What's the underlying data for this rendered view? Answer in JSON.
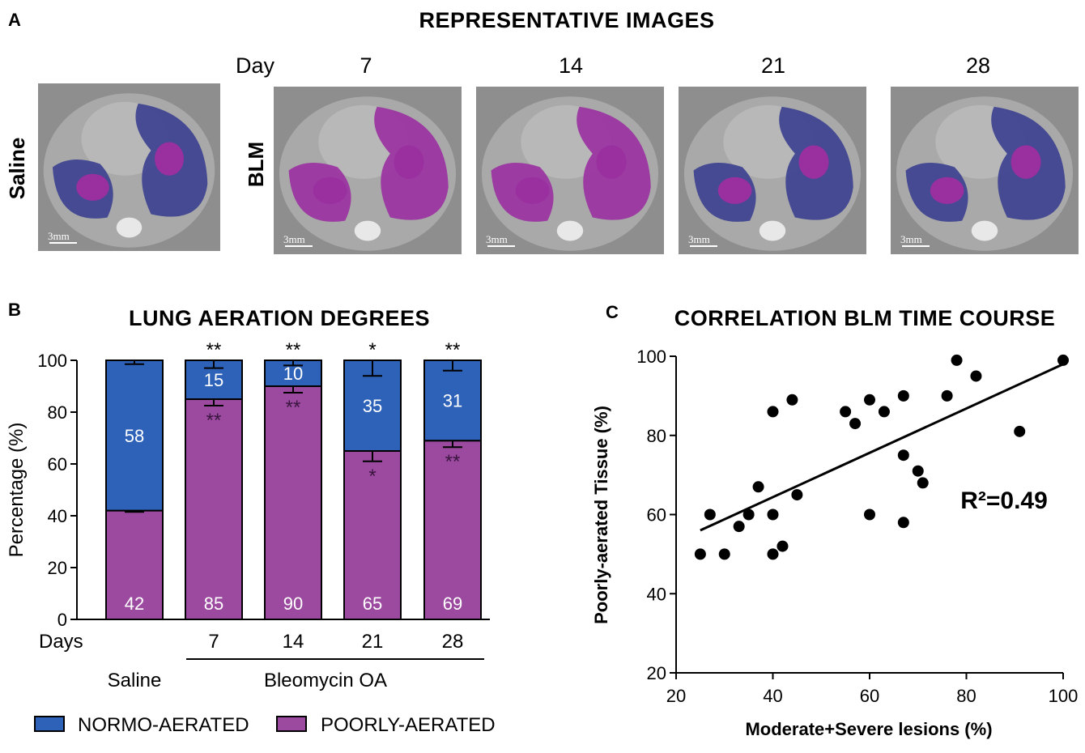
{
  "panel_a": {
    "letter": "A",
    "title": "REPRESENTATIVE  IMAGES",
    "day_label": "Day",
    "saline_label": "Saline",
    "blm_label": "BLM",
    "scale_bar": "3mm",
    "days": [
      "7",
      "14",
      "21",
      "28"
    ]
  },
  "chart_data": [
    {
      "type": "bar",
      "panel": "B",
      "title": "LUNG AERATION  DEGREES",
      "ylabel": "Percentage (%)",
      "ylim": [
        0,
        100
      ],
      "yticks": [
        "0",
        "20",
        "40",
        "60",
        "80",
        "100"
      ],
      "xlabel_prefix": "Days",
      "categories": [
        "",
        "7",
        "14",
        "21",
        "28"
      ],
      "group_labels": {
        "saline": "Saline",
        "bleomycin": "Bleomycin OA"
      },
      "series": [
        {
          "name": "POORLY-AERATED",
          "color": "#9b4a9f",
          "values": [
            42,
            85,
            90,
            65,
            69
          ],
          "labels": [
            "42",
            "85",
            "90",
            "65",
            "69"
          ],
          "err": [
            0.5,
            2.5,
            2.5,
            4,
            2.5
          ],
          "significance": [
            "",
            "**",
            "**",
            "*",
            "**"
          ]
        },
        {
          "name": "NORMO-AERATED",
          "color": "#2e62b8",
          "values": [
            58,
            15,
            10,
            35,
            31
          ],
          "labels": [
            "58",
            "15",
            "10",
            "35",
            "31"
          ],
          "err": [
            1.5,
            3,
            2,
            6,
            4
          ],
          "significance": [
            "",
            "**",
            "**",
            "*",
            "**"
          ]
        }
      ],
      "legend": [
        "NORMO-AERATED",
        "POORLY-AERATED"
      ]
    },
    {
      "type": "scatter",
      "panel": "C",
      "title": "CORRELATION  BLM TIME COURSE",
      "xlabel": "Moderate+Severe lesions (%)",
      "ylabel": "Poorly-aerated Tissue (%)",
      "xlim": [
        20,
        100
      ],
      "ylim": [
        20,
        100
      ],
      "xticks": [
        "20",
        "40",
        "60",
        "80",
        "100"
      ],
      "yticks": [
        "20",
        "40",
        "60",
        "80",
        "100"
      ],
      "annotation": "R²=0.49",
      "fit": {
        "x": [
          25,
          100
        ],
        "y": [
          56,
          98
        ]
      },
      "points": [
        [
          25,
          50
        ],
        [
          27,
          60
        ],
        [
          30,
          50
        ],
        [
          33,
          57
        ],
        [
          35,
          60
        ],
        [
          37,
          67
        ],
        [
          40,
          86
        ],
        [
          40,
          60
        ],
        [
          40,
          50
        ],
        [
          42,
          52
        ],
        [
          44,
          89
        ],
        [
          45,
          65
        ],
        [
          55,
          86
        ],
        [
          57,
          83
        ],
        [
          60,
          89
        ],
        [
          60,
          60
        ],
        [
          63,
          86
        ],
        [
          67,
          90
        ],
        [
          67,
          75
        ],
        [
          67,
          58
        ],
        [
          70,
          71
        ],
        [
          71,
          68
        ],
        [
          76,
          90
        ],
        [
          78,
          99
        ],
        [
          82,
          95
        ],
        [
          91,
          81
        ],
        [
          100,
          99
        ]
      ]
    }
  ],
  "panel_letters": {
    "b": "B",
    "c": "C"
  }
}
